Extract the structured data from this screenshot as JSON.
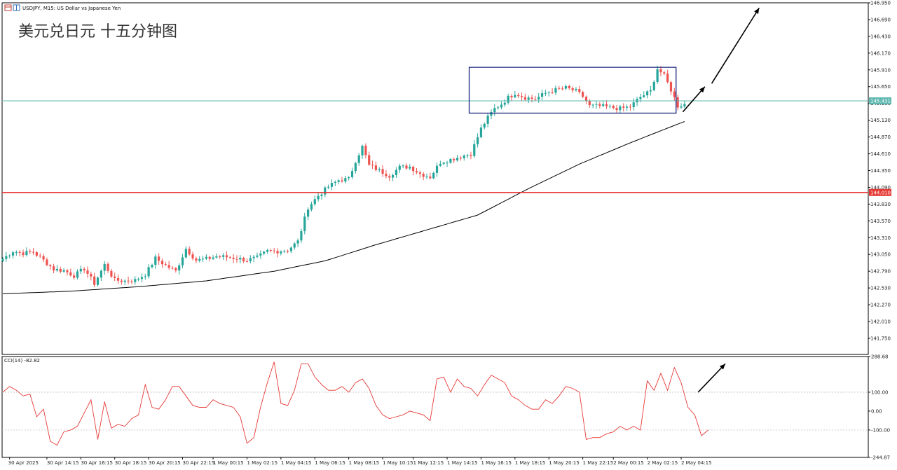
{
  "header": {
    "symbol": "USDJPY, M15:  US Dollar vs Japanese Yen",
    "overlay_title": "美元兑日元 十五分钟图"
  },
  "colors": {
    "bull": "#26a69a",
    "bear": "#ef5350",
    "ma": "#000000",
    "support_line": "#e53935",
    "box": "#1a237e",
    "bid_line": "#5fb8b0",
    "cci": "#e53935",
    "grid": "#bfbfbf"
  },
  "chart_data": [
    {
      "type": "candlestick",
      "symbol": "USDJPY",
      "timeframe": "M15",
      "ylim": [
        141.5,
        146.95
      ],
      "yticks": [
        "146.950",
        "146.690",
        "146.430",
        "146.170",
        "145.910",
        "145.650",
        "145.390",
        "145.130",
        "144.870",
        "144.610",
        "144.350",
        "144.090",
        "143.830",
        "143.570",
        "143.310",
        "143.050",
        "142.790",
        "142.530",
        "142.270",
        "142.010",
        "141.750"
      ],
      "price_labels": {
        "bid": "145.431",
        "support": "144.010"
      },
      "bid_price": 145.43,
      "support_price": 144.01,
      "box": {
        "x_start": 137.5,
        "x_end": 198.5,
        "top": 145.95,
        "bottom": 145.24
      },
      "arrows": [
        {
          "from": [
            200.5,
            145.26
          ],
          "to": [
            207,
            145.65
          ]
        },
        {
          "from": [
            209,
            145.7
          ],
          "to": [
            223,
            146.87
          ]
        }
      ],
      "x_total_bars": 255,
      "x_labels": [
        {
          "bar": 2,
          "text": "30 Apr 2025"
        },
        {
          "bar": 13,
          "text": "30 Apr 14:15"
        },
        {
          "bar": 23,
          "text": "30 Apr 16:15"
        },
        {
          "bar": 33,
          "text": "30 Apr 18:15"
        },
        {
          "bar": 43,
          "text": "30 Apr 20:15"
        },
        {
          "bar": 53,
          "text": "30 Apr 22:15"
        },
        {
          "bar": 62,
          "text": "1 May 00:15"
        },
        {
          "bar": 72,
          "text": "1 May 02:15"
        },
        {
          "bar": 82,
          "text": "1 May 04:15"
        },
        {
          "bar": 92,
          "text": "1 May 06:15"
        },
        {
          "bar": 102,
          "text": "1 May 08:15"
        },
        {
          "bar": 112,
          "text": "1 May 10:15"
        },
        {
          "bar": 121,
          "text": "1 May 12:15"
        },
        {
          "bar": 131,
          "text": "1 May 14:15"
        },
        {
          "bar": 141,
          "text": "1 May 16:15"
        },
        {
          "bar": 151,
          "text": "1 May 18:15"
        },
        {
          "bar": 161,
          "text": "1 May 20:15"
        },
        {
          "bar": 171,
          "text": "1 May 22:15"
        },
        {
          "bar": 180,
          "text": "2 May 00:15"
        },
        {
          "bar": 190,
          "text": "2 May 02:15"
        },
        {
          "bar": 200,
          "text": "2 May 04:15"
        }
      ],
      "close_path": [
        [
          0,
          142.98
        ],
        [
          3,
          143.1
        ],
        [
          6,
          143.07
        ],
        [
          9,
          143.09
        ],
        [
          12,
          142.96
        ],
        [
          15,
          142.82
        ],
        [
          18,
          142.8
        ],
        [
          21,
          142.72
        ],
        [
          24,
          142.83
        ],
        [
          27,
          142.6
        ],
        [
          30,
          142.89
        ],
        [
          33,
          142.65
        ],
        [
          36,
          142.64
        ],
        [
          39,
          142.65
        ],
        [
          42,
          142.74
        ],
        [
          45,
          142.99
        ],
        [
          48,
          142.88
        ],
        [
          51,
          142.79
        ],
        [
          54,
          143.14
        ],
        [
          57,
          142.96
        ],
        [
          60,
          142.98
        ],
        [
          63,
          143.02
        ],
        [
          66,
          143.01
        ],
        [
          69,
          142.99
        ],
        [
          72,
          142.96
        ],
        [
          75,
          143.0
        ],
        [
          78,
          143.1
        ],
        [
          81,
          143.1
        ],
        [
          84,
          143.12
        ],
        [
          87,
          143.25
        ],
        [
          90,
          143.78
        ],
        [
          93,
          143.96
        ],
        [
          96,
          144.1
        ],
        [
          99,
          144.2
        ],
        [
          102,
          144.22
        ],
        [
          104,
          144.5
        ],
        [
          106,
          144.72
        ],
        [
          108,
          144.43
        ],
        [
          111,
          144.35
        ],
        [
          114,
          144.27
        ],
        [
          117,
          144.4
        ],
        [
          120,
          144.41
        ],
        [
          123,
          144.3
        ],
        [
          126,
          144.25
        ],
        [
          129,
          144.48
        ],
        [
          132,
          144.52
        ],
        [
          135,
          144.57
        ],
        [
          138,
          144.61
        ],
        [
          141,
          145.0
        ],
        [
          143,
          145.17
        ],
        [
          145,
          145.31
        ],
        [
          147,
          145.38
        ],
        [
          149,
          145.48
        ],
        [
          151,
          145.55
        ],
        [
          154,
          145.48
        ],
        [
          157,
          145.46
        ],
        [
          160,
          145.55
        ],
        [
          163,
          145.6
        ],
        [
          166,
          145.63
        ],
        [
          169,
          145.58
        ],
        [
          171,
          145.5
        ],
        [
          173,
          145.35
        ],
        [
          176,
          145.35
        ],
        [
          179,
          145.33
        ],
        [
          182,
          145.31
        ],
        [
          185,
          145.34
        ],
        [
          188,
          145.49
        ],
        [
          191,
          145.58
        ],
        [
          193,
          145.93
        ],
        [
          195,
          145.82
        ],
        [
          197,
          145.6
        ],
        [
          199,
          145.35
        ],
        [
          201,
          145.38
        ]
      ],
      "ma_path": [
        [
          0,
          142.44
        ],
        [
          20,
          142.48
        ],
        [
          40,
          142.55
        ],
        [
          60,
          142.64
        ],
        [
          80,
          142.79
        ],
        [
          95,
          142.95
        ],
        [
          110,
          143.2
        ],
        [
          125,
          143.43
        ],
        [
          140,
          143.66
        ],
        [
          155,
          144.07
        ],
        [
          170,
          144.45
        ],
        [
          185,
          144.78
        ],
        [
          199,
          145.07
        ],
        [
          201,
          145.11
        ]
      ]
    },
    {
      "type": "line",
      "indicator": "CCI(14)",
      "label": "CCI(14) -82.82",
      "ylim": [
        -244.87,
        288.68
      ],
      "ytick_labels": [
        "288.68",
        "100.00",
        "0.00",
        "-100.00",
        "-244.87"
      ],
      "ytick_values": [
        288.68,
        100,
        0,
        -100,
        -244.87
      ],
      "level_lines": [
        100,
        -100
      ],
      "arrow": {
        "from": [
          205,
          100
        ],
        "to": [
          213,
          250
        ]
      },
      "series": [
        [
          0,
          100
        ],
        [
          2,
          130
        ],
        [
          4,
          110
        ],
        [
          6,
          80
        ],
        [
          8,
          90
        ],
        [
          10,
          -30
        ],
        [
          12,
          10
        ],
        [
          14,
          -160
        ],
        [
          16,
          -180
        ],
        [
          18,
          -110
        ],
        [
          20,
          -100
        ],
        [
          22,
          -80
        ],
        [
          24,
          -10
        ],
        [
          26,
          60
        ],
        [
          28,
          -150
        ],
        [
          30,
          50
        ],
        [
          32,
          -90
        ],
        [
          34,
          -70
        ],
        [
          36,
          -80
        ],
        [
          38,
          -40
        ],
        [
          40,
          -20
        ],
        [
          42,
          140
        ],
        [
          44,
          20
        ],
        [
          46,
          10
        ],
        [
          48,
          60
        ],
        [
          50,
          130
        ],
        [
          52,
          130
        ],
        [
          54,
          80
        ],
        [
          56,
          30
        ],
        [
          58,
          20
        ],
        [
          60,
          20
        ],
        [
          62,
          60
        ],
        [
          64,
          40
        ],
        [
          66,
          30
        ],
        [
          68,
          20
        ],
        [
          70,
          -30
        ],
        [
          72,
          -170
        ],
        [
          74,
          -140
        ],
        [
          76,
          20
        ],
        [
          78,
          150
        ],
        [
          80,
          260
        ],
        [
          82,
          40
        ],
        [
          84,
          30
        ],
        [
          86,
          110
        ],
        [
          88,
          250
        ],
        [
          90,
          250
        ],
        [
          92,
          180
        ],
        [
          94,
          140
        ],
        [
          96,
          110
        ],
        [
          98,
          110
        ],
        [
          100,
          130
        ],
        [
          102,
          100
        ],
        [
          104,
          150
        ],
        [
          106,
          170
        ],
        [
          108,
          120
        ],
        [
          110,
          30
        ],
        [
          112,
          -20
        ],
        [
          114,
          -40
        ],
        [
          116,
          -30
        ],
        [
          118,
          -20
        ],
        [
          120,
          0
        ],
        [
          122,
          -10
        ],
        [
          124,
          -20
        ],
        [
          126,
          -50
        ],
        [
          128,
          170
        ],
        [
          130,
          180
        ],
        [
          132,
          100
        ],
        [
          134,
          170
        ],
        [
          136,
          130
        ],
        [
          138,
          120
        ],
        [
          140,
          80
        ],
        [
          142,
          140
        ],
        [
          144,
          190
        ],
        [
          146,
          170
        ],
        [
          148,
          150
        ],
        [
          150,
          80
        ],
        [
          152,
          60
        ],
        [
          154,
          30
        ],
        [
          156,
          10
        ],
        [
          158,
          10
        ],
        [
          160,
          60
        ],
        [
          162,
          40
        ],
        [
          164,
          80
        ],
        [
          166,
          130
        ],
        [
          168,
          120
        ],
        [
          170,
          100
        ],
        [
          172,
          -150
        ],
        [
          174,
          -140
        ],
        [
          176,
          -140
        ],
        [
          178,
          -120
        ],
        [
          180,
          -110
        ],
        [
          182,
          -80
        ],
        [
          184,
          -100
        ],
        [
          186,
          -80
        ],
        [
          188,
          -100
        ],
        [
          190,
          160
        ],
        [
          192,
          110
        ],
        [
          194,
          200
        ],
        [
          196,
          110
        ],
        [
          198,
          230
        ],
        [
          200,
          150
        ],
        [
          202,
          20
        ],
        [
          204,
          -20
        ],
        [
          206,
          -130
        ],
        [
          208,
          -100
        ]
      ]
    }
  ]
}
